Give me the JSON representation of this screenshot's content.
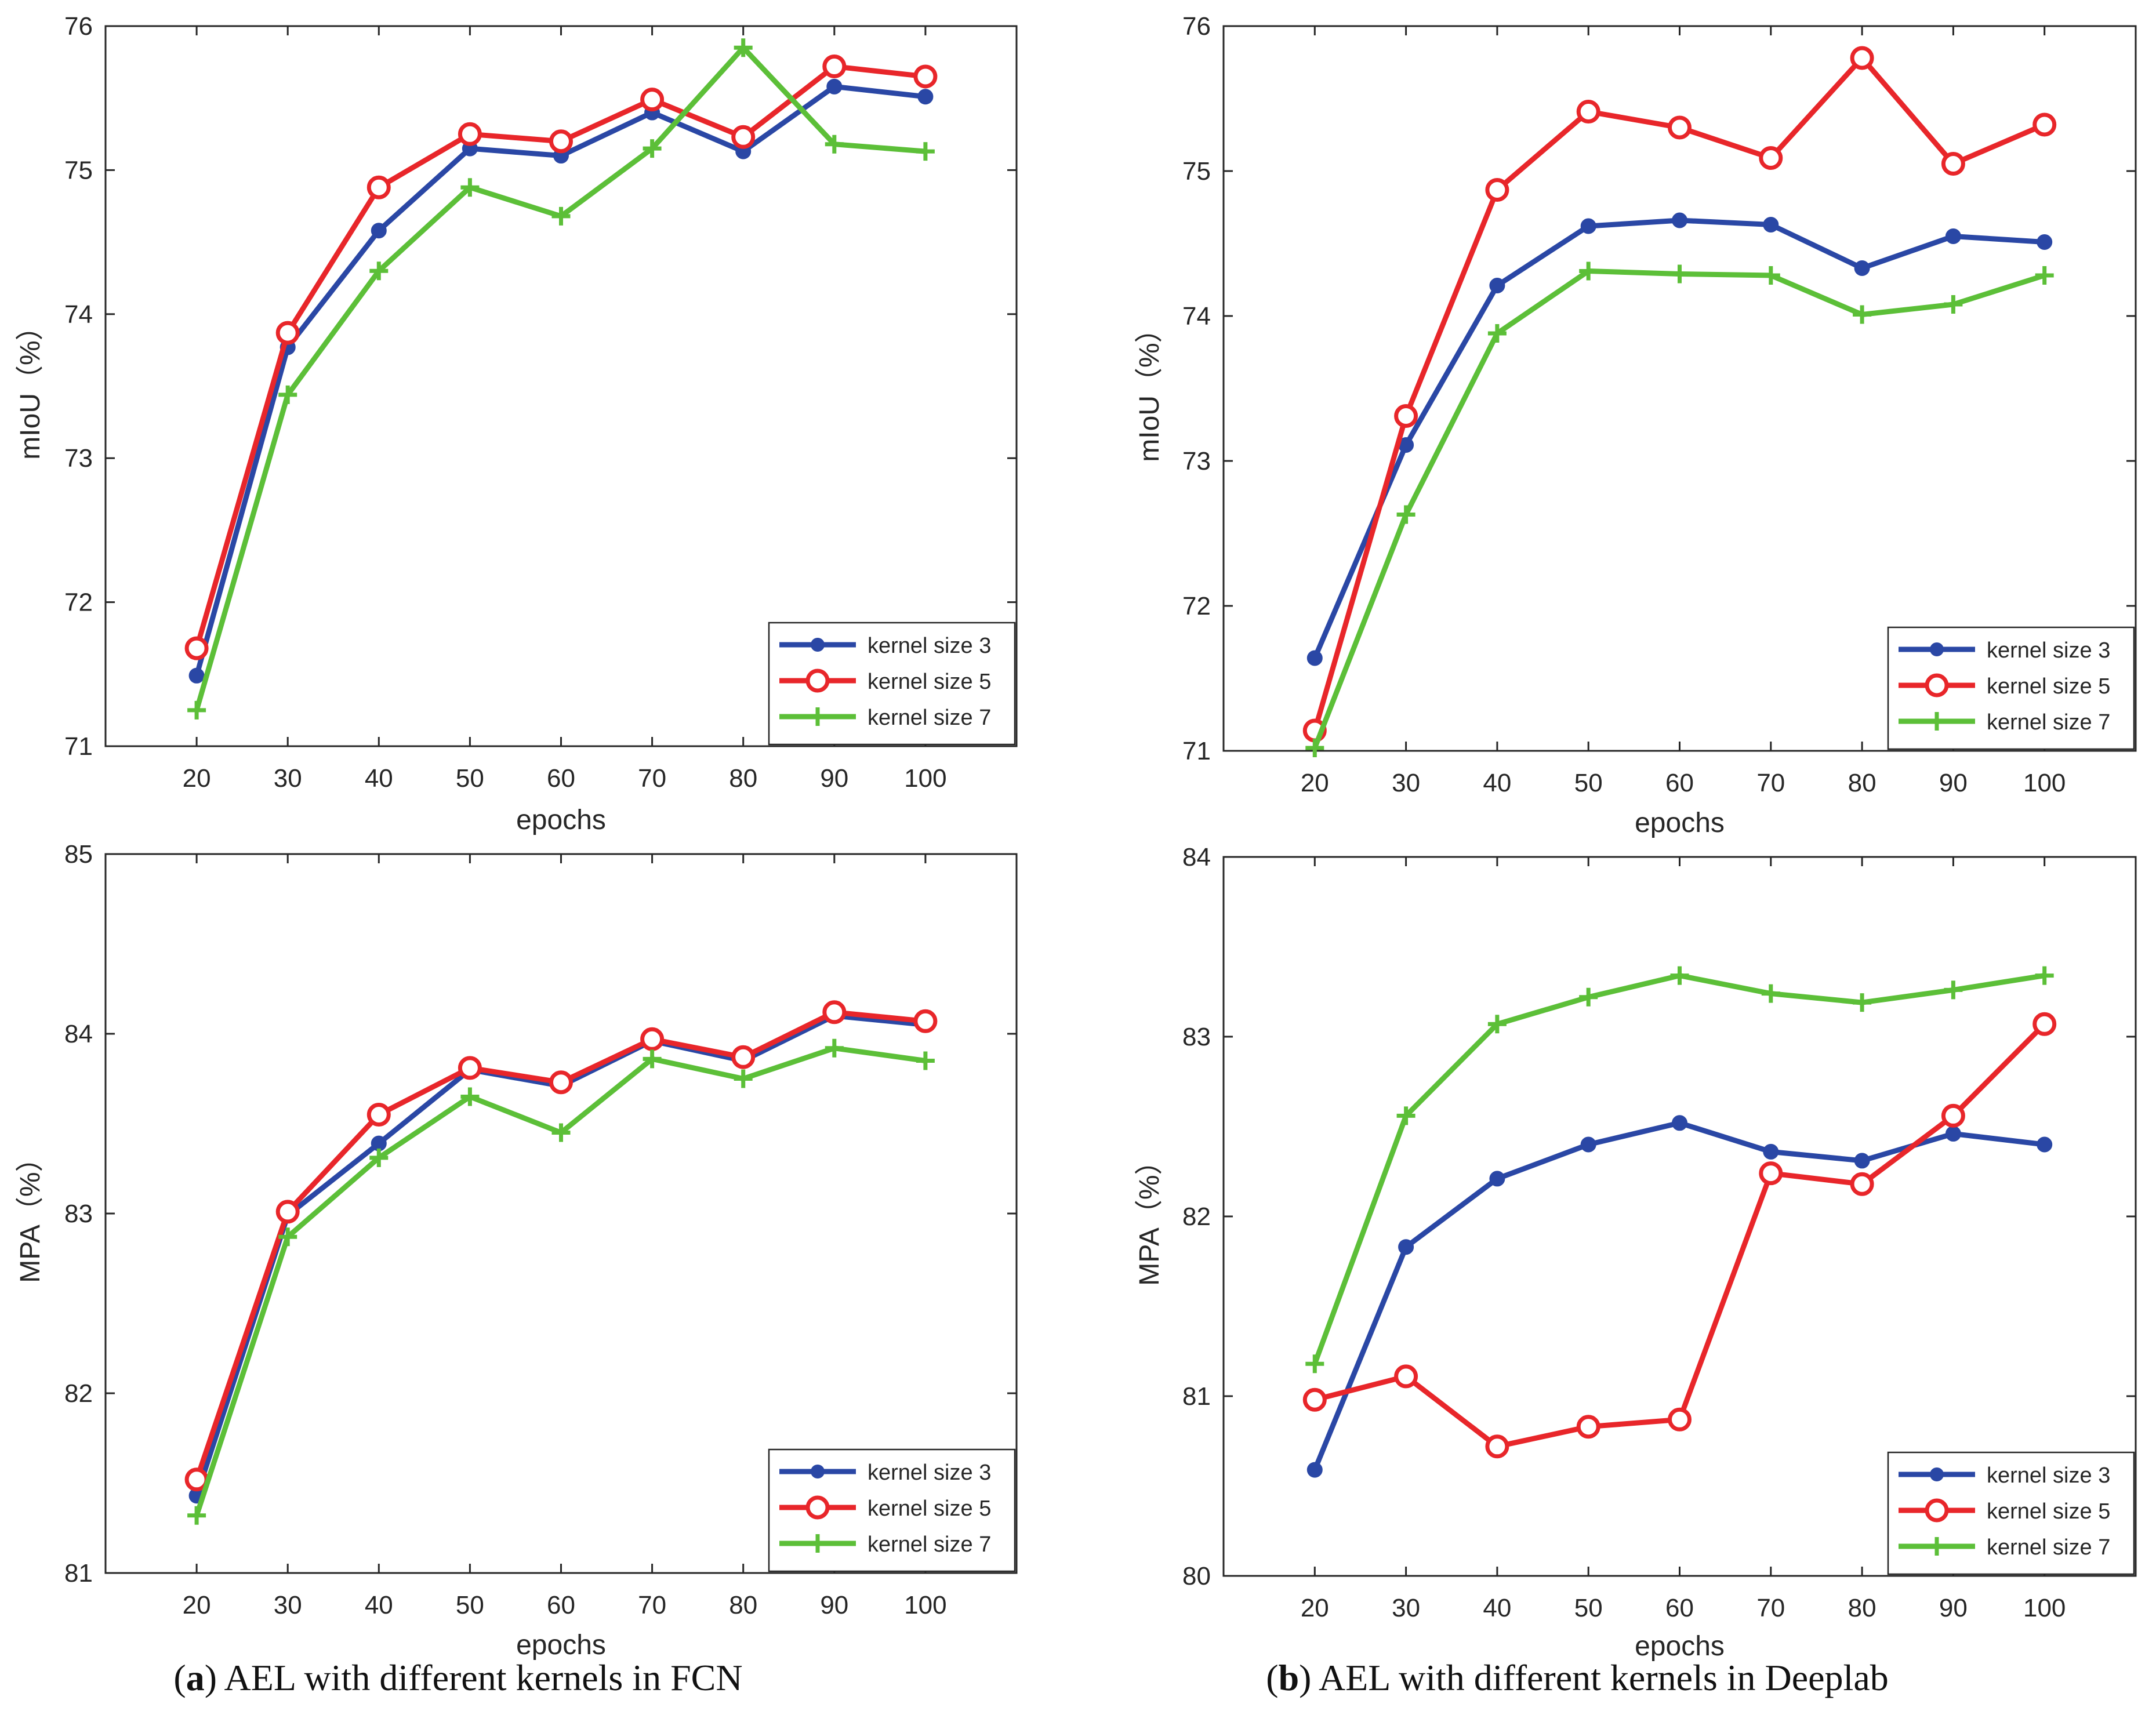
{
  "figure": {
    "captions": [
      {
        "label": "a",
        "text": "AEL with different kernels in FCN"
      },
      {
        "label": "b",
        "text": "AEL with different kernels in Deeplab"
      }
    ]
  },
  "series_style": {
    "kernel size 3": {
      "color": "#2a47a5",
      "marker": "filled-circle"
    },
    "kernel size 5": {
      "color": "#e8262a",
      "marker": "open-circle"
    },
    "kernel size 7": {
      "color": "#5cbf38",
      "marker": "plus"
    }
  },
  "chart_data": [
    {
      "id": "fcn-miou",
      "type": "line",
      "title": "",
      "xlabel": "epochs",
      "ylabel": "mIoU（%）",
      "x": [
        20,
        30,
        40,
        50,
        60,
        70,
        80,
        90,
        100
      ],
      "xlim": [
        10,
        110
      ],
      "ylim": [
        71,
        76
      ],
      "yticks": [
        71,
        72,
        73,
        74,
        75,
        76
      ],
      "legend_position": "bottom-right",
      "grid": false,
      "series": [
        {
          "name": "kernel size 3",
          "values": [
            71.49,
            73.77,
            74.58,
            75.15,
            75.1,
            75.4,
            75.13,
            75.58,
            75.51
          ]
        },
        {
          "name": "kernel size 5",
          "values": [
            71.68,
            73.87,
            74.88,
            75.25,
            75.2,
            75.49,
            75.23,
            75.72,
            75.65
          ]
        },
        {
          "name": "kernel size 7",
          "values": [
            71.25,
            73.44,
            74.3,
            74.88,
            74.68,
            75.15,
            75.85,
            75.18,
            75.13
          ]
        }
      ]
    },
    {
      "id": "deeplab-miou",
      "type": "line",
      "title": "",
      "xlabel": "epochs",
      "ylabel": "mIoU（%）",
      "x": [
        20,
        30,
        40,
        50,
        60,
        70,
        80,
        90,
        100
      ],
      "xlim": [
        10,
        110
      ],
      "ylim": [
        71,
        76
      ],
      "yticks": [
        71,
        72,
        73,
        74,
        75,
        76
      ],
      "legend_position": "bottom-right",
      "grid": false,
      "series": [
        {
          "name": "kernel size 3",
          "values": [
            71.64,
            73.11,
            74.21,
            74.62,
            74.66,
            74.63,
            74.33,
            74.55,
            74.51
          ]
        },
        {
          "name": "kernel size 5",
          "values": [
            71.14,
            73.31,
            74.87,
            75.41,
            75.3,
            75.09,
            75.78,
            75.05,
            75.32
          ]
        },
        {
          "name": "kernel size 7",
          "values": [
            71.02,
            72.63,
            73.88,
            74.31,
            74.29,
            74.28,
            74.01,
            74.08,
            74.28
          ]
        }
      ]
    },
    {
      "id": "fcn-mpa",
      "type": "line",
      "title": "",
      "xlabel": "epochs",
      "ylabel": "MPA（%）",
      "x": [
        20,
        30,
        40,
        50,
        60,
        70,
        80,
        90,
        100
      ],
      "xlim": [
        10,
        110
      ],
      "ylim": [
        81,
        85
      ],
      "yticks": [
        81,
        82,
        83,
        84,
        85
      ],
      "legend_position": "bottom-right",
      "grid": false,
      "series": [
        {
          "name": "kernel size 3",
          "values": [
            81.43,
            82.99,
            83.39,
            83.8,
            83.71,
            83.96,
            83.85,
            84.1,
            84.05
          ]
        },
        {
          "name": "kernel size 5",
          "values": [
            81.52,
            83.01,
            83.55,
            83.81,
            83.73,
            83.97,
            83.87,
            84.12,
            84.07
          ]
        },
        {
          "name": "kernel size 7",
          "values": [
            81.32,
            82.87,
            83.31,
            83.65,
            83.45,
            83.86,
            83.75,
            83.92,
            83.85
          ]
        }
      ]
    },
    {
      "id": "deeplab-mpa",
      "type": "line",
      "title": "",
      "xlabel": "epochs",
      "ylabel": "MPA（%）",
      "x": [
        20,
        30,
        40,
        50,
        60,
        70,
        80,
        90,
        100
      ],
      "xlim": [
        10,
        110
      ],
      "ylim": [
        80,
        84
      ],
      "yticks": [
        80,
        81,
        82,
        83,
        84
      ],
      "legend_position": "bottom-right",
      "grid": false,
      "series": [
        {
          "name": "kernel size 3",
          "values": [
            80.59,
            81.83,
            82.21,
            82.4,
            82.52,
            82.36,
            82.31,
            82.46,
            82.4
          ]
        },
        {
          "name": "kernel size 5",
          "values": [
            80.98,
            81.11,
            80.72,
            80.83,
            80.87,
            82.24,
            82.18,
            82.56,
            83.07
          ]
        },
        {
          "name": "kernel size 7",
          "values": [
            81.18,
            82.56,
            83.07,
            83.22,
            83.34,
            83.24,
            83.19,
            83.26,
            83.34
          ]
        }
      ]
    }
  ]
}
